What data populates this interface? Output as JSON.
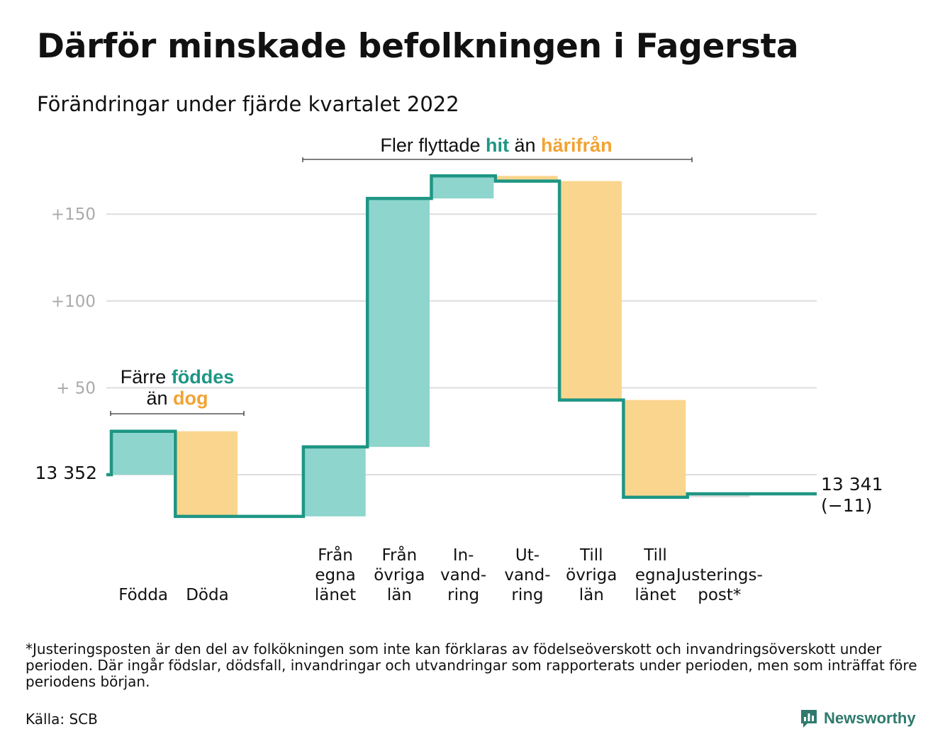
{
  "title": "Därför minskade befolkningen i Fagersta",
  "subtitle": "Förändringar under fjärde kvartalet 2022",
  "colors": {
    "increase": "#8dd5cd",
    "decrease": "#fad58d",
    "line": "#1e9684",
    "teal_text": "#1e9684",
    "orange_text": "#f2a333",
    "grid": "#dedede",
    "tick_text": "#aaaaaa"
  },
  "annotations": {
    "births": {
      "line1_prefix": "Färre ",
      "line1_highlight": "föddes",
      "line2_prefix": "än ",
      "line2_highlight": "dog"
    },
    "migration": {
      "prefix": "Fler flyttade ",
      "highlight1": "hit",
      "middle": " än ",
      "highlight2": "härifrån"
    }
  },
  "chart_data": {
    "type": "waterfall",
    "title": "Därför minskade befolkningen i Fagersta",
    "subtitle": "Förändringar under fjärde kvartalet 2022",
    "start_value": 13352,
    "start_label": "13 352",
    "end_value": 13341,
    "end_label": "13 341",
    "end_change_label": "(−11)",
    "yticks": [
      {
        "value": 50,
        "label": "+ 50"
      },
      {
        "value": 100,
        "label": "+100"
      },
      {
        "value": 150,
        "label": "+150"
      }
    ],
    "ylim": [
      -30,
      175
    ],
    "grid": true,
    "steps": [
      {
        "label_lines": [
          "",
          "",
          "Födda"
        ],
        "value": 25,
        "type": "increase"
      },
      {
        "label_lines": [
          "",
          "",
          "Döda"
        ],
        "value": -49,
        "type": "decrease"
      },
      {
        "label_lines": [],
        "value": 0,
        "type": "gap"
      },
      {
        "label_lines": [
          "Från",
          "egna",
          "länet"
        ],
        "value": 40,
        "type": "increase"
      },
      {
        "label_lines": [
          "Från",
          "övriga",
          "län"
        ],
        "value": 143,
        "type": "increase"
      },
      {
        "label_lines": [
          "In-",
          "vand-",
          "ring"
        ],
        "value": 13,
        "type": "increase"
      },
      {
        "label_lines": [
          "Ut-",
          "vand-",
          "ring"
        ],
        "value": -3,
        "type": "decrease"
      },
      {
        "label_lines": [
          "Till",
          "övriga",
          "län"
        ],
        "value": -126,
        "type": "decrease"
      },
      {
        "label_lines": [
          "Till",
          "egna",
          "länet"
        ],
        "value": -56,
        "type": "decrease"
      },
      {
        "label_lines": [
          "",
          "Justerings-",
          "post*"
        ],
        "value": 2,
        "type": "adjustment"
      }
    ]
  },
  "footnote": "*Justeringsposten är den del av folkökningen som inte kan förklaras av födelseöverskott och invandringsöverskott under perioden. Där ingår födslar, dödsfall, invandringar och utvandringar som rapporterats under perioden, men som inträffat före periodens början.",
  "source": "Källa: SCB",
  "brand": {
    "name": "Newsworthy",
    "icon": "bar-chart-speech-bubble-icon"
  }
}
